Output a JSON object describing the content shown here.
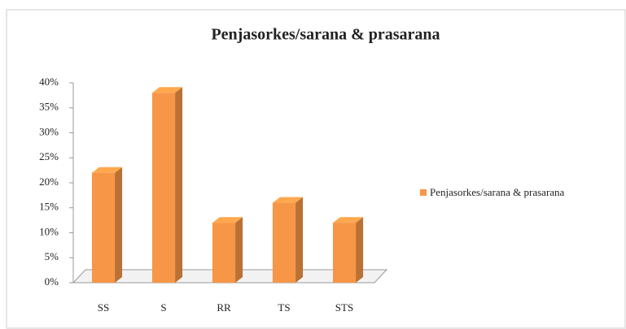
{
  "chart_data": {
    "type": "bar3d",
    "title": "Penjasorkes/sarana & prasarana",
    "categories": [
      "SS",
      "S",
      "RR",
      "TS",
      "STS"
    ],
    "series": [
      {
        "name": "Penjasorkes/sarana & prasarana",
        "color": "#f79646",
        "values": [
          22,
          38,
          12,
          16,
          12
        ]
      }
    ],
    "ylim": [
      0,
      40
    ],
    "yticks": [
      {
        "value": 0,
        "label": "0%"
      },
      {
        "value": 5,
        "label": "5%"
      },
      {
        "value": 10,
        "label": "10%"
      },
      {
        "value": 15,
        "label": "15%"
      },
      {
        "value": 20,
        "label": "20%"
      },
      {
        "value": 25,
        "label": "25%"
      },
      {
        "value": 30,
        "label": "30%"
      },
      {
        "value": 35,
        "label": "35%"
      },
      {
        "value": 40,
        "label": "40%"
      }
    ],
    "legend": "right"
  }
}
